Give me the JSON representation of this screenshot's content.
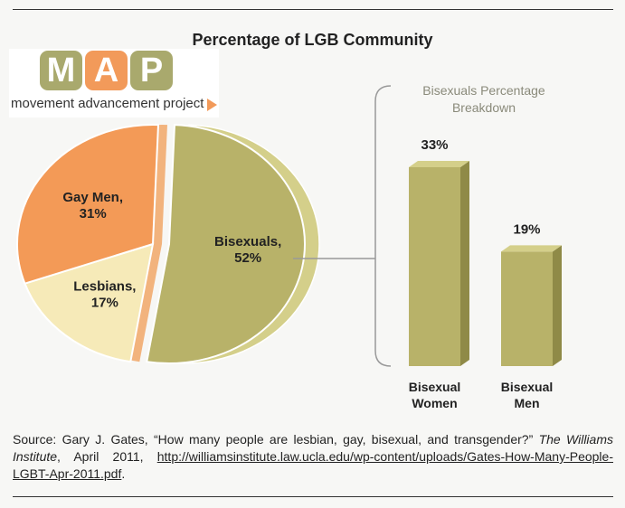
{
  "colors": {
    "bisexuals": "#b8b269",
    "bisexuals_dark": "#8f8a47",
    "bisexuals_light": "#d4cf8a",
    "lesbians": "#f6eab8",
    "gay_men": "#f39a57",
    "logo_green": "#a9a96d",
    "logo_orange": "#f29a5a"
  },
  "logo": {
    "letters": [
      "M",
      "A",
      "P"
    ],
    "tagline": "movement advancement project"
  },
  "chart_data": [
    {
      "type": "pie",
      "title": "Percentage of LGB Community",
      "slices": [
        {
          "label": "Bisexuals,",
          "value_label": "52%",
          "value": 52
        },
        {
          "label": "Lesbians,",
          "value_label": "17%",
          "value": 17
        },
        {
          "label": "Gay Men,",
          "value_label": "31%",
          "value": 31
        }
      ]
    },
    {
      "type": "bar",
      "title_lines": [
        "Bisexuals Percentage",
        "Breakdown"
      ],
      "categories": [
        [
          "Bisexual",
          "Women"
        ],
        [
          "Bisexual",
          "Men"
        ]
      ],
      "values": [
        33,
        19
      ],
      "value_labels": [
        "33%",
        "19%"
      ]
    }
  ],
  "source": {
    "prefix": "Source: Gary J. Gates, “How many people are lesbian, gay, bisexual, and transgender?” ",
    "publication": "The Williams Institute",
    "date": ", April 2011, ",
    "url": "http://williamsinstitute.law.ucla.edu/wp-content/uploads/Gates-How-Many-People-LGBT-Apr-2011.pdf",
    "suffix": "."
  }
}
